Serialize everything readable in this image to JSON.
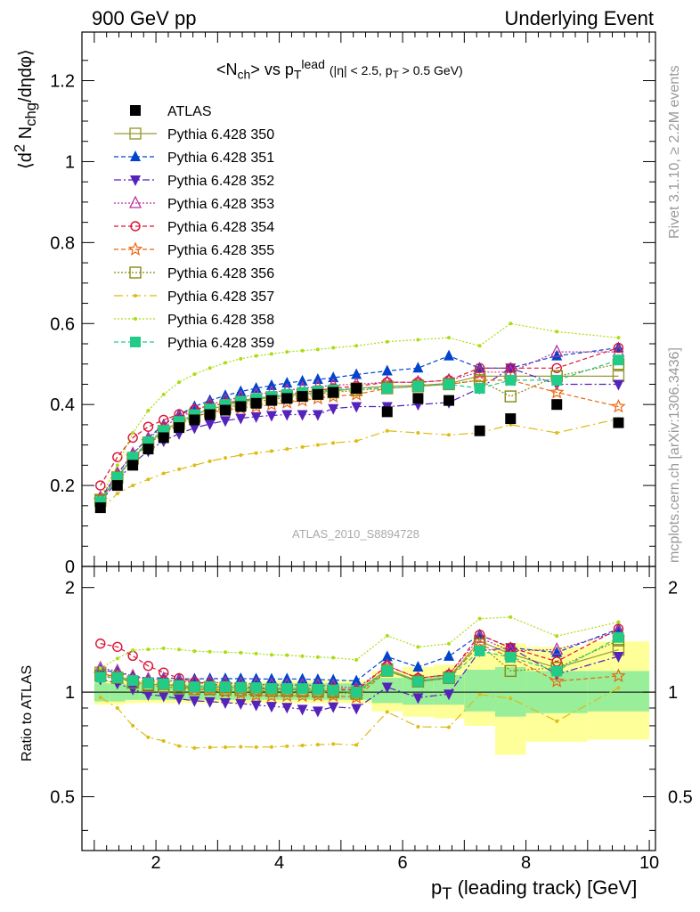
{
  "header": {
    "left": "900 GeV pp",
    "right": "Underlying Event"
  },
  "side": {
    "rivet": "Rivet 3.1.10, ≥ 2.2M events",
    "mcplots": "mcplots.cern.ch [arXiv:1306.3436]"
  },
  "main": {
    "title_html": "&lt;N<sub class=\"sm\">ch</sub>&gt; vs p<sub class=\"sm\">T</sub><sup class=\"sm\">lead</sup> <span class=\"sm\">(|η| &lt; 2.5, p<sub>T</sub> &gt; 0.5 GeV)</span>",
    "ylabel_html": "⟨d<sup>2</sup> N<sub>chg</sub>/dηdφ⟩",
    "analysis_tag": "ATLAS_2010_S8894728"
  },
  "ratio": {
    "ylabel": "Ratio to ATLAS"
  },
  "xaxis": {
    "label_html": "p<sub>T</sub> (leading track) [GeV]"
  },
  "chart_data": {
    "type": "scatter",
    "xlim": [
      0.8,
      10.1
    ],
    "ylim_main": [
      0,
      1.32
    ],
    "ylim_ratio": [
      0.35,
      2.3
    ],
    "ratio_log_scale": true,
    "main_yticks": [
      0,
      0.2,
      0.4,
      0.6,
      0.8,
      1,
      1.2
    ],
    "ratio_yticks": [
      0.5,
      1,
      2
    ],
    "xticks": [
      2,
      4,
      6,
      8,
      10
    ],
    "x": [
      1.1,
      1.375,
      1.625,
      1.875,
      2.125,
      2.375,
      2.625,
      2.875,
      3.125,
      3.375,
      3.625,
      3.875,
      4.125,
      4.375,
      4.625,
      4.875,
      5.25,
      5.75,
      6.25,
      6.75,
      7.25,
      7.75,
      8.5,
      9.5
    ],
    "data": {
      "name": "ATLAS",
      "color": "#000000",
      "values": [
        0.145,
        0.2,
        0.25,
        0.29,
        0.318,
        0.343,
        0.362,
        0.375,
        0.386,
        0.395,
        0.403,
        0.41,
        0.415,
        0.42,
        0.425,
        0.43,
        0.44,
        0.382,
        0.415,
        0.41,
        0.335,
        0.365,
        0.4,
        0.355
      ]
    },
    "legend_position": "top-left",
    "series": [
      {
        "name": "Pythia 6.428 350",
        "color": "#999933",
        "marker": "square-open",
        "dash": "solid",
        "values": [
          0.165,
          0.22,
          0.268,
          0.305,
          0.335,
          0.358,
          0.375,
          0.388,
          0.398,
          0.406,
          0.412,
          0.418,
          0.422,
          0.426,
          0.43,
          0.433,
          0.44,
          0.445,
          0.447,
          0.452,
          0.47,
          0.47,
          0.47,
          0.47
        ]
      },
      {
        "name": "Pythia 6.428 351",
        "color": "#0044cc",
        "marker": "triangle-up",
        "dash": "5,3",
        "values": [
          0.168,
          0.228,
          0.278,
          0.318,
          0.35,
          0.375,
          0.395,
          0.41,
          0.422,
          0.432,
          0.44,
          0.447,
          0.453,
          0.458,
          0.462,
          0.466,
          0.474,
          0.483,
          0.49,
          0.52,
          0.49,
          0.49,
          0.52,
          0.54
        ]
      },
      {
        "name": "Pythia 6.428 352",
        "color": "#5522bb",
        "marker": "triangle-down",
        "dash": "8,3,2,3",
        "values": [
          0.158,
          0.212,
          0.255,
          0.285,
          0.31,
          0.328,
          0.342,
          0.352,
          0.36,
          0.366,
          0.37,
          0.373,
          0.375,
          0.375,
          0.375,
          0.39,
          0.395,
          0.395,
          0.4,
          0.405,
          0.44,
          0.49,
          0.45,
          0.45
        ]
      },
      {
        "name": "Pythia 6.428 353",
        "color": "#bb3399",
        "marker": "triangle-up-open",
        "dash": "2,2",
        "values": [
          0.17,
          0.23,
          0.278,
          0.316,
          0.345,
          0.368,
          0.386,
          0.4,
          0.41,
          0.418,
          0.425,
          0.43,
          0.435,
          0.44,
          0.444,
          0.448,
          0.45,
          0.455,
          0.455,
          0.46,
          0.48,
          0.48,
          0.53,
          0.53
        ]
      },
      {
        "name": "Pythia 6.428 354",
        "color": "#dd1133",
        "marker": "circle-open",
        "dash": "5,3",
        "values": [
          0.2,
          0.27,
          0.318,
          0.345,
          0.362,
          0.376,
          0.387,
          0.396,
          0.403,
          0.41,
          0.415,
          0.42,
          0.425,
          0.43,
          0.435,
          0.44,
          0.445,
          0.455,
          0.455,
          0.46,
          0.49,
          0.49,
          0.49,
          0.54
        ]
      },
      {
        "name": "Pythia 6.428 355",
        "color": "#ee6611",
        "marker": "star-open",
        "dash": "5,3",
        "values": [
          0.163,
          0.222,
          0.27,
          0.308,
          0.336,
          0.356,
          0.37,
          0.38,
          0.386,
          0.391,
          0.395,
          0.4,
          0.405,
          0.41,
          0.415,
          0.42,
          0.425,
          0.44,
          0.445,
          0.45,
          0.46,
          0.46,
          0.43,
          0.395
        ]
      },
      {
        "name": "Pythia 6.428 356",
        "color": "#888811",
        "marker": "square-open",
        "dash": "2,2",
        "values": [
          0.162,
          0.22,
          0.266,
          0.302,
          0.33,
          0.352,
          0.369,
          0.382,
          0.392,
          0.4,
          0.407,
          0.413,
          0.418,
          0.422,
          0.426,
          0.43,
          0.435,
          0.44,
          0.445,
          0.45,
          0.46,
          0.42,
          0.47,
          0.5
        ]
      },
      {
        "name": "Pythia 6.428 357",
        "color": "#ddbb11",
        "marker": "dot",
        "dash": "10,4,2,4",
        "values": [
          0.14,
          0.18,
          0.2,
          0.215,
          0.23,
          0.24,
          0.25,
          0.26,
          0.268,
          0.275,
          0.28,
          0.285,
          0.29,
          0.295,
          0.3,
          0.305,
          0.31,
          0.335,
          0.33,
          0.325,
          0.33,
          0.35,
          0.33,
          0.365
        ]
      },
      {
        "name": "Pythia 6.428 358",
        "color": "#aadd11",
        "marker": "dot",
        "dash": "2,2",
        "values": [
          0.17,
          0.25,
          0.33,
          0.385,
          0.425,
          0.455,
          0.475,
          0.49,
          0.503,
          0.513,
          0.52,
          0.525,
          0.53,
          0.533,
          0.536,
          0.54,
          0.545,
          0.555,
          0.56,
          0.565,
          0.545,
          0.6,
          0.58,
          0.565
        ]
      },
      {
        "name": "Pythia 6.428 359",
        "color": "#22cc88",
        "marker": "square",
        "dash": "5,3",
        "values": [
          0.16,
          0.22,
          0.27,
          0.308,
          0.336,
          0.358,
          0.375,
          0.389,
          0.4,
          0.408,
          0.415,
          0.42,
          0.425,
          0.43,
          0.433,
          0.436,
          0.44,
          0.44,
          0.445,
          0.45,
          0.44,
          0.46,
          0.46,
          0.51
        ]
      }
    ],
    "band_edges": [
      1.0,
      1.25,
      1.5,
      1.75,
      2.0,
      2.25,
      2.5,
      2.75,
      3.0,
      3.25,
      3.5,
      3.75,
      4.0,
      4.25,
      4.5,
      4.75,
      5.0,
      5.5,
      6.0,
      6.5,
      7.0,
      7.5,
      8.0,
      9.0,
      10.0
    ],
    "band_inner": [
      [
        0.94,
        1.06
      ],
      [
        0.94,
        1.06
      ],
      [
        0.95,
        1.05
      ],
      [
        0.95,
        1.05
      ],
      [
        0.95,
        1.05
      ],
      [
        0.95,
        1.05
      ],
      [
        0.95,
        1.05
      ],
      [
        0.95,
        1.05
      ],
      [
        0.95,
        1.05
      ],
      [
        0.95,
        1.05
      ],
      [
        0.95,
        1.05
      ],
      [
        0.95,
        1.06
      ],
      [
        0.95,
        1.06
      ],
      [
        0.95,
        1.06
      ],
      [
        0.95,
        1.06
      ],
      [
        0.95,
        1.06
      ],
      [
        0.95,
        1.06
      ],
      [
        0.93,
        1.1
      ],
      [
        0.92,
        1.1
      ],
      [
        0.92,
        1.12
      ],
      [
        0.88,
        1.16
      ],
      [
        0.85,
        1.18
      ],
      [
        0.87,
        1.15
      ],
      [
        0.88,
        1.15
      ]
    ],
    "band_outer": [
      [
        0.92,
        1.08
      ],
      [
        0.92,
        1.08
      ],
      [
        0.93,
        1.07
      ],
      [
        0.93,
        1.07
      ],
      [
        0.93,
        1.07
      ],
      [
        0.93,
        1.07
      ],
      [
        0.93,
        1.07
      ],
      [
        0.93,
        1.07
      ],
      [
        0.93,
        1.07
      ],
      [
        0.93,
        1.07
      ],
      [
        0.93,
        1.07
      ],
      [
        0.93,
        1.08
      ],
      [
        0.93,
        1.08
      ],
      [
        0.93,
        1.08
      ],
      [
        0.93,
        1.08
      ],
      [
        0.93,
        1.08
      ],
      [
        0.93,
        1.08
      ],
      [
        0.88,
        1.15
      ],
      [
        0.85,
        1.18
      ],
      [
        0.84,
        1.2
      ],
      [
        0.8,
        1.3
      ],
      [
        0.66,
        1.38
      ],
      [
        0.72,
        1.35
      ],
      [
        0.73,
        1.4
      ]
    ],
    "band_inner_color": "#99ee99",
    "band_outer_color": "#ffff99"
  }
}
